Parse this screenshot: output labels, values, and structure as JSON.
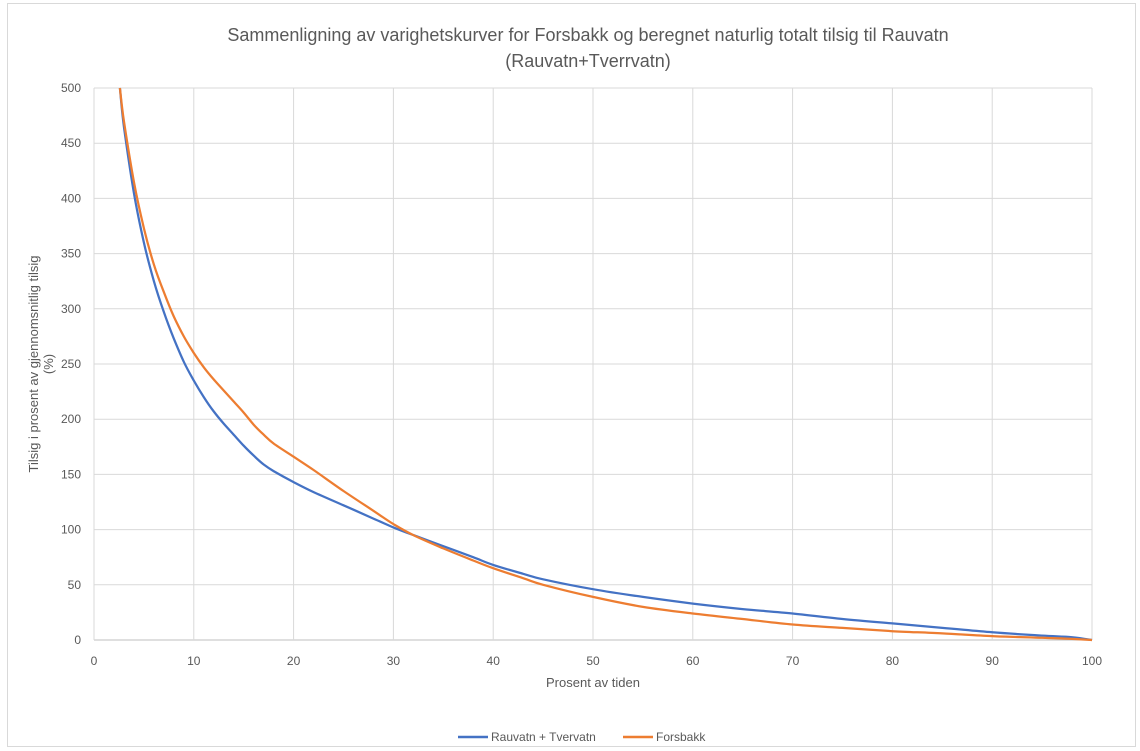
{
  "chart_data": {
    "type": "line",
    "title_line1": "Sammenligning av varighetskurver for Forsbakk og beregnet naturlig totalt tilsig til Rauvatn",
    "title_line2": "(Rauvatn+Tverrvatn)",
    "xlabel": "Prosent av tiden",
    "ylabel_line1": "Tilsig i prosent av gjennomsnitlig tilsig",
    "ylabel_line2": "(%)",
    "xlim": [
      0,
      100
    ],
    "ylim": [
      0,
      500
    ],
    "xticks": [
      0,
      10,
      20,
      30,
      40,
      50,
      60,
      70,
      80,
      90,
      100
    ],
    "yticks": [
      0,
      50,
      100,
      150,
      200,
      250,
      300,
      350,
      400,
      450,
      500
    ],
    "grid": true,
    "legend_position": "bottom",
    "series": [
      {
        "name": "Rauvatn + Tvervatn",
        "color": "#4472c4",
        "x": [
          2.6,
          3,
          4,
          5,
          6,
          7,
          8,
          9,
          10,
          11,
          12,
          13,
          14,
          15,
          16,
          17,
          18,
          20,
          22,
          25,
          28,
          30,
          32,
          35,
          38,
          40,
          43,
          45,
          50,
          55,
          60,
          65,
          70,
          75,
          80,
          85,
          90,
          95,
          98,
          100
        ],
        "y": [
          500,
          465,
          405,
          360,
          325,
          297,
          273,
          252,
          235,
          220,
          207,
          196,
          186,
          176,
          167,
          159,
          153,
          143,
          134,
          122,
          110,
          102,
          95,
          85,
          75,
          68,
          60,
          55,
          46,
          39,
          33,
          28,
          24,
          19,
          15,
          11,
          7,
          4,
          2.5,
          0
        ]
      },
      {
        "name": "Forsbakk",
        "color": "#ed7d31",
        "x": [
          2.6,
          3,
          4,
          5,
          6,
          7,
          8,
          9,
          10,
          11,
          12,
          13,
          14,
          15,
          16,
          17,
          18,
          20,
          22,
          25,
          28,
          30,
          32,
          35,
          38,
          40,
          43,
          45,
          50,
          55,
          60,
          65,
          70,
          75,
          80,
          85,
          90,
          95,
          98,
          100
        ],
        "y": [
          500,
          470,
          415,
          373,
          340,
          315,
          293,
          275,
          260,
          247,
          236,
          226,
          216,
          206,
          195,
          186,
          178,
          166,
          154,
          135,
          117,
          105,
          95,
          83,
          72,
          65,
          56,
          50,
          39,
          30,
          24,
          19,
          14,
          11,
          8,
          6,
          3.5,
          2,
          1,
          0
        ]
      }
    ]
  }
}
